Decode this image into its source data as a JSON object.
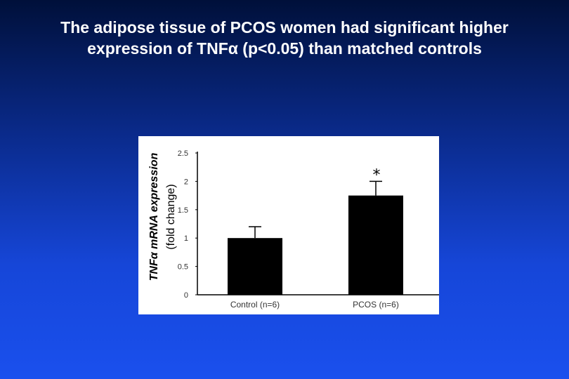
{
  "slide": {
    "title_line1": "The adipose tissue of PCOS women had significant higher",
    "title_line2": "expression of TNFα (p<0.05) than matched controls",
    "background_color": "#1646d8"
  },
  "chart_data": {
    "type": "bar",
    "categories": [
      "Control (n=6)",
      "PCOS (n=6)"
    ],
    "values": [
      1.0,
      1.75
    ],
    "error": [
      0.2,
      0.25
    ],
    "annotations": [
      {
        "category": "PCOS (n=6)",
        "text": "*"
      }
    ],
    "title": "",
    "ylabel_line1": "TNFα mRNA expression",
    "ylabel_line2": "(fold change)",
    "xlabel": "",
    "ylim": [
      0,
      2.5
    ],
    "yticks": [
      0,
      0.5,
      1,
      1.5,
      2,
      2.5
    ],
    "ytick_labels": [
      "0",
      "0.5",
      "1",
      "1.5",
      "2",
      "2.5"
    ],
    "bar_color": "#000000",
    "grid": false
  }
}
